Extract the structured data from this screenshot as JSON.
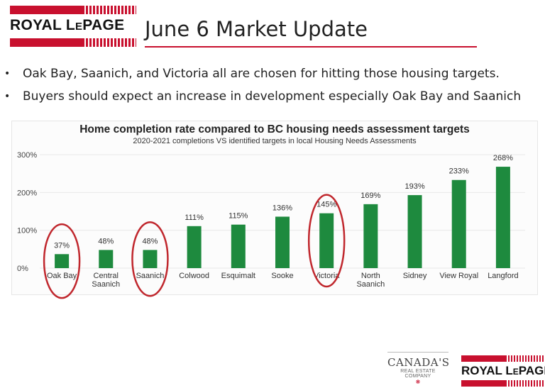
{
  "brand": {
    "logo_text": "ROYAL LEPAGE",
    "logo_text_small_e": "E",
    "accent_color": "#c8102e"
  },
  "header": {
    "title": "June 6 Market Update"
  },
  "bullets": [
    "Oak Bay, Saanich, and Victoria all are chosen for hitting those housing targets.",
    "Buyers should expect an increase in development especially Oak Bay and Saanich"
  ],
  "footer": {
    "tagline_big": "CANADA'S",
    "tagline_small": "REAL ESTATE COMPANY",
    "logo_text": "ROYAL LEPAGE"
  },
  "chart_data": {
    "type": "bar",
    "title": "Home completion rate compared to BC housing needs assessment targets",
    "subtitle": "2020-2021 completions VS identified targets in local Housing Needs Assessments",
    "categories": [
      [
        "Oak Bay"
      ],
      [
        "Central",
        "Saanich"
      ],
      [
        "Saanich"
      ],
      [
        "Colwood"
      ],
      [
        "Esquimalt"
      ],
      [
        "Sooke"
      ],
      [
        "Victoria"
      ],
      [
        "North",
        "Saanich"
      ],
      [
        "Sidney"
      ],
      [
        "View Royal"
      ],
      [
        "Langford"
      ]
    ],
    "values": [
      37,
      48,
      48,
      111,
      115,
      136,
      145,
      169,
      193,
      233,
      268
    ],
    "value_labels": [
      "37%",
      "48%",
      "48%",
      "111%",
      "115%",
      "136%",
      "145%",
      "169%",
      "193%",
      "233%",
      "268%"
    ],
    "y_ticks": [
      0,
      100,
      200,
      300
    ],
    "y_tick_labels": [
      "0%",
      "100%",
      "200%",
      "300%"
    ],
    "ylim": [
      0,
      300
    ],
    "bar_color": "#1e8a3e",
    "highlight_color": "#c0272d",
    "highlighted_categories": [
      0,
      2,
      6
    ],
    "grid": true
  }
}
